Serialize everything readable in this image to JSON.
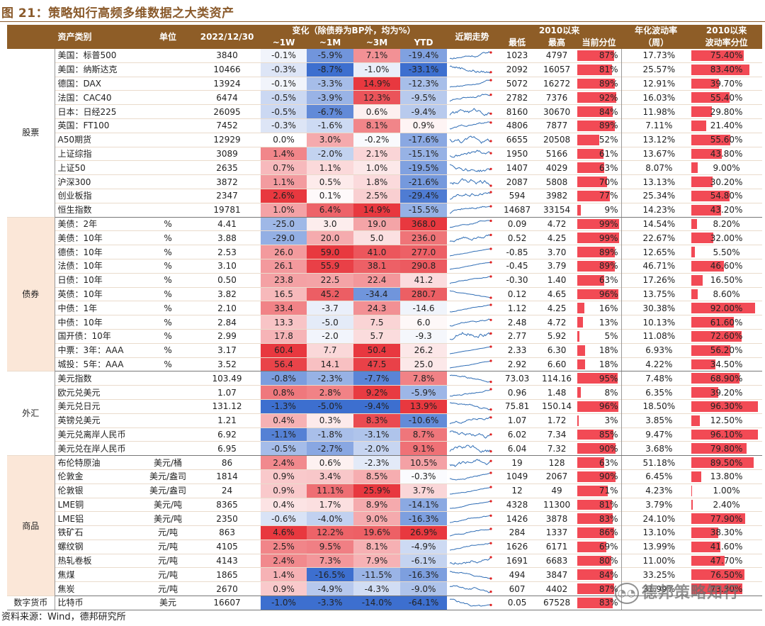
{
  "title": "图 21：策略知行高频多维数据之大类资产",
  "source": "资料来源：Wind，德邦研究所",
  "watermark": "德邦策略知行",
  "header": {
    "asset_class": "资产类别",
    "unit": "单位",
    "date": "2022/12/30",
    "change_group": "变化（除债券为BP外，均为%）",
    "w1": "~1W",
    "m1": "~1M",
    "m3": "~3M",
    "ytd": "YTD",
    "trend": "近期走势",
    "since2010": "2010以来",
    "low": "最低",
    "high": "最高",
    "pct": "当前分位",
    "vol_line1": "年化波动率",
    "vol_line2": "（周）",
    "volpct_line1": "2010以来",
    "volpct_line2": "波动率分位"
  },
  "groups": [
    {
      "name": "股票",
      "rows": [
        {
          "name": "美国：标普500",
          "unit": "",
          "value": "3840",
          "w1": "-0.1%",
          "m1": "-5.9%",
          "m3": "7.1%",
          "ytd": "-19.4%",
          "low": "1023",
          "high": "4797",
          "pct": "87%",
          "vol": "17.73%",
          "volpct": "75.40%"
        },
        {
          "name": "美国：纳斯达克",
          "unit": "",
          "value": "10466",
          "w1": "-0.3%",
          "m1": "-8.7%",
          "m3": "-1.0%",
          "ytd": "-33.1%",
          "low": "2092",
          "high": "16057",
          "pct": "81%",
          "vol": "25.57%",
          "volpct": "83.40%"
        },
        {
          "name": "德国：DAX",
          "unit": "",
          "value": "13924",
          "w1": "-0.1%",
          "m1": "-3.3%",
          "m3": "14.9%",
          "ytd": "-12.3%",
          "low": "5072",
          "high": "16272",
          "pct": "89%",
          "vol": "12.91%",
          "volpct": "39.70%"
        },
        {
          "name": "法国：CAC40",
          "unit": "",
          "value": "6474",
          "w1": "-0.5%",
          "m1": "-3.9%",
          "m3": "12.3%",
          "ytd": "-9.5%",
          "low": "2782",
          "high": "7376",
          "pct": "92%",
          "vol": "16.03%",
          "volpct": "55.40%"
        },
        {
          "name": "日本：日经225",
          "unit": "",
          "value": "26095",
          "w1": "-0.5%",
          "m1": "-6.7%",
          "m3": "0.6%",
          "ytd": "-9.4%",
          "low": "8160",
          "high": "30670",
          "pct": "84%",
          "vol": "11.98%",
          "volpct": "29.80%"
        },
        {
          "name": "英国：FT100",
          "unit": "",
          "value": "7452",
          "w1": "-0.3%",
          "m1": "-1.6%",
          "m3": "8.1%",
          "ytd": "0.9%",
          "low": "4806",
          "high": "7877",
          "pct": "89%",
          "vol": "7.11%",
          "volpct": "21.40%"
        },
        {
          "name": "A50期货",
          "unit": "",
          "value": "12929",
          "w1": "0.0%",
          "m1": "3.0%",
          "m3": "-0.2%",
          "ytd": "-17.6%",
          "low": "6655",
          "high": "20508",
          "pct": "52%",
          "vol": "13.12%",
          "volpct": "55.60%"
        },
        {
          "name": "上证综指",
          "unit": "",
          "value": "3089",
          "w1": "1.4%",
          "m1": "-2.0%",
          "m3": "2.1%",
          "ytd": "-15.1%",
          "low": "1950",
          "high": "5166",
          "pct": "61%",
          "vol": "13.67%",
          "volpct": "43.80%"
        },
        {
          "name": "上证50",
          "unit": "",
          "value": "2635",
          "w1": "0.7%",
          "m1": "1.1%",
          "m3": "1.0%",
          "ytd": "-19.5%",
          "low": "1407",
          "high": "4029",
          "pct": "63%",
          "vol": "8.07%",
          "volpct": "9.00%"
        },
        {
          "name": "沪深300",
          "unit": "",
          "value": "3872",
          "w1": "1.1%",
          "m1": "0.5%",
          "m3": "1.8%",
          "ytd": "-21.6%",
          "low": "2087",
          "high": "5808",
          "pct": "70%",
          "vol": "13.13%",
          "volpct": "30.20%"
        },
        {
          "name": "创业板指",
          "unit": "",
          "value": "2347",
          "w1": "2.6%",
          "m1": "0.1%",
          "m3": "2.5%",
          "ytd": "-29.4%",
          "low": "594",
          "high": "3982",
          "pct": "77%",
          "vol": "25.34%",
          "volpct": "54.80%"
        },
        {
          "name": "恒生指数",
          "unit": "",
          "value": "19781",
          "w1": "1.0%",
          "m1": "6.4%",
          "m3": "14.9%",
          "ytd": "-15.5%",
          "low": "14687",
          "high": "33154",
          "pct": "9%",
          "vol": "14.23%",
          "volpct": "43.20%"
        }
      ]
    },
    {
      "name": "债券",
      "rows": [
        {
          "name": "美债：2年",
          "unit": "%",
          "value": "4.41",
          "w1": "-25.0",
          "m1": "3.0",
          "m3": "19.0",
          "ytd": "368.0",
          "low": "0.09",
          "high": "4.72",
          "pct": "99%",
          "vol": "14.54%",
          "volpct": "8.20%"
        },
        {
          "name": "美债：10年",
          "unit": "%",
          "value": "3.88",
          "w1": "-29.0",
          "m1": "20.0",
          "m3": "5.0",
          "ytd": "236.0",
          "low": "0.52",
          "high": "4.25",
          "pct": "99%",
          "vol": "22.67%",
          "volpct": "32.00%"
        },
        {
          "name": "德债：10年",
          "unit": "%",
          "value": "2.53",
          "w1": "26.0",
          "m1": "59.0",
          "m3": "41.0",
          "ytd": "277.0",
          "low": "-0.85",
          "high": "3.70",
          "pct": "89%",
          "vol": "12.65%",
          "volpct": "5.50%"
        },
        {
          "name": "法债：10年",
          "unit": "%",
          "value": "3.10",
          "w1": "26.1",
          "m1": "55.9",
          "m3": "38.1",
          "ytd": "290.8",
          "low": "-0.45",
          "high": "3.79",
          "pct": "89%",
          "vol": "46.71%",
          "volpct": "46.60%"
        },
        {
          "name": "日债：10年",
          "unit": "%",
          "value": "0.50",
          "w1": "23.8",
          "m1": "22.5",
          "m3": "22.4",
          "ytd": "41.2",
          "low": "-0.30",
          "high": "1.40",
          "pct": "63%",
          "vol": "17.26%",
          "volpct": "16.50%"
        },
        {
          "name": "英债：10年",
          "unit": "%",
          "value": "3.82",
          "w1": "16.5",
          "m1": "45.2",
          "m3": "-34.4",
          "ytd": "280.7",
          "low": "0.12",
          "high": "4.65",
          "pct": "96%",
          "vol": "13.75%",
          "volpct": "8.60%"
        },
        {
          "name": "中债：1年",
          "unit": "%",
          "value": "2.10",
          "w1": "33.4",
          "m1": "-3.7",
          "m3": "24.3",
          "ytd": "-14.6",
          "low": "1.12",
          "high": "4.25",
          "pct": "16%",
          "vol": "30.38%",
          "volpct": "92.00%"
        },
        {
          "name": "中债：10年",
          "unit": "%",
          "value": "2.84",
          "w1": "13.3",
          "m1": "-5.0",
          "m3": "7.5",
          "ytd": "6.0",
          "low": "2.48",
          "high": "4.72",
          "pct": "13%",
          "vol": "10.13%",
          "volpct": "61.60%"
        },
        {
          "name": "国开债：10年",
          "unit": "%",
          "value": "2.99",
          "w1": "17.8",
          "m1": "-2.0",
          "m3": "5.7",
          "ytd": "-9.3",
          "low": "2.77",
          "high": "5.92",
          "pct": "5%",
          "vol": "11.08%",
          "volpct": "72.60%"
        },
        {
          "name": "中票：3年：AAA",
          "unit": "%",
          "value": "3.17",
          "w1": "60.4",
          "m1": "7.7",
          "m3": "50.4",
          "ytd": "26.2",
          "low": "2.33",
          "high": "6.30",
          "pct": "18%",
          "vol": "6.93%",
          "volpct": "56.20%"
        },
        {
          "name": "城投：5年：AAA",
          "unit": "%",
          "value": "3.52",
          "w1": "56.4",
          "m1": "14.1",
          "m3": "47.5",
          "ytd": "25.0",
          "low": "2.92",
          "high": "6.60",
          "pct": "18%",
          "vol": "4.22%",
          "volpct": "34.50%"
        }
      ]
    },
    {
      "name": "外汇",
      "rows": [
        {
          "name": "美元指数",
          "unit": "",
          "value": "103.49",
          "w1": "-0.8%",
          "m1": "-2.3%",
          "m3": "-7.7%",
          "ytd": "7.8%",
          "low": "73.03",
          "high": "114.16",
          "pct": "95%",
          "vol": "7.48%",
          "volpct": "68.90%"
        },
        {
          "name": "欧元兑美元",
          "unit": "",
          "value": "1.07",
          "w1": "0.8%",
          "m1": "2.8%",
          "m3": "9.2%",
          "ytd": "-5.9%",
          "low": "0.96",
          "high": "1.48",
          "pct": "8%",
          "vol": "6.35%",
          "volpct": "39.20%"
        },
        {
          "name": "美元兑日元",
          "unit": "",
          "value": "131.12",
          "w1": "-1.3%",
          "m1": "-5.0%",
          "m3": "-9.4%",
          "ytd": "13.9%",
          "low": "75.81",
          "high": "150.14",
          "pct": "96%",
          "vol": "18.50%",
          "volpct": "96.30%"
        },
        {
          "name": "英镑兑美元",
          "unit": "",
          "value": "1.21",
          "w1": "0.4%",
          "m1": "0.3%",
          "m3": "8.3%",
          "ytd": "-10.6%",
          "low": "1.07",
          "high": "1.72",
          "pct": "3%",
          "vol": "3.85%",
          "volpct": "12.50%"
        },
        {
          "name": "美元兑离岸人民币",
          "unit": "",
          "value": "6.92",
          "w1": "-1.1%",
          "m1": "-1.8%",
          "m3": "-3.1%",
          "ytd": "8.7%",
          "low": "6.02",
          "high": "7.34",
          "pct": "85%",
          "vol": "9.47%",
          "volpct": "96.10%"
        },
        {
          "name": "美元兑在岸人民币",
          "unit": "",
          "value": "6.95",
          "w1": "-0.5%",
          "m1": "-2.7%",
          "m3": "-2.0%",
          "ytd": "9.1%",
          "low": "6.04",
          "high": "7.32",
          "pct": "90%",
          "vol": "3.68%",
          "volpct": "79.80%"
        }
      ]
    },
    {
      "name": "商品",
      "rows": [
        {
          "name": "布伦特原油",
          "unit": "美元/桶",
          "value": "86",
          "w1": "2.4%",
          "m1": "0.6%",
          "m3": "-2.3%",
          "ytd": "10.5%",
          "low": "19",
          "high": "128",
          "pct": "63%",
          "vol": "51.18%",
          "volpct": "89.50%"
        },
        {
          "name": "伦敦金",
          "unit": "美元/盎司",
          "value": "1814",
          "w1": "0.9%",
          "m1": "3.4%",
          "m3": "8.5%",
          "ytd": "-0.3%",
          "low": "1049",
          "high": "2067",
          "pct": "90%",
          "vol": "6.45%",
          "volpct": "13.80%"
        },
        {
          "name": "伦敦银",
          "unit": "美元/盎司",
          "value": "24",
          "w1": "0.9%",
          "m1": "11.1%",
          "m3": "25.9%",
          "ytd": "3.7%",
          "low": "12",
          "high": "49",
          "pct": "71%",
          "vol": "4.23%",
          "volpct": "1.00%"
        },
        {
          "name": "LME铜",
          "unit": "美元/吨",
          "value": "8365",
          "w1": "0.4%",
          "m1": "1.7%",
          "m3": "8.9%",
          "ytd": "-14.1%",
          "low": "4328",
          "high": "11300",
          "pct": "81%",
          "vol": "3.79%",
          "volpct": "2.40%"
        },
        {
          "name": "LME铝",
          "unit": "美元/吨",
          "value": "2350",
          "w1": "-0.6%",
          "m1": "-4.0%",
          "m3": "9.0%",
          "ytd": "-16.3%",
          "low": "1426",
          "high": "3878",
          "pct": "83%",
          "vol": "24.10%",
          "volpct": "77.90%"
        },
        {
          "name": "铁矿石",
          "unit": "元/吨",
          "value": "863",
          "w1": "4.6%",
          "m1": "12.2%",
          "m3": "19.6%",
          "ytd": "26.9%",
          "low": "284",
          "high": "1337",
          "pct": "86%",
          "vol": "13.10%",
          "volpct": "38.30%"
        },
        {
          "name": "螺纹钢",
          "unit": "元/吨",
          "value": "4105",
          "w1": "2.5%",
          "m1": "9.5%",
          "m3": "8.1%",
          "ytd": "-4.9%",
          "low": "1626",
          "high": "6171",
          "pct": "69%",
          "vol": "13.99%",
          "volpct": "41.60%"
        },
        {
          "name": "热轧卷板",
          "unit": "元/吨",
          "value": "4143",
          "w1": "2.4%",
          "m1": "7.3%",
          "m3": "7.9%",
          "ytd": "-6.1%",
          "low": "1691",
          "high": "6683",
          "pct": "80%",
          "vol": "11.00%",
          "volpct": "47.70%"
        },
        {
          "name": "焦煤",
          "unit": "元/吨",
          "value": "1865",
          "w1": "1.4%",
          "m1": "-16.5%",
          "m3": "-11.5%",
          "ytd": "-16.3%",
          "low": "494",
          "high": "3847",
          "pct": "84%",
          "vol": "33.25%",
          "volpct": "76.50%"
        },
        {
          "name": "焦炭",
          "unit": "元/吨",
          "value": "2670",
          "w1": "0.9%",
          "m1": "-4.9%",
          "m3": "-4.3%",
          "ytd": "-9.0%",
          "low": "607",
          "high": "4402",
          "pct": "87%",
          "vol": "31.99%",
          "volpct": "73.30%"
        }
      ]
    },
    {
      "name": "数字货币",
      "rows": [
        {
          "name": "比特币",
          "unit": "美元",
          "value": "16607",
          "w1": "-1.0%",
          "m1": "-3.3%",
          "m3": "-14.0%",
          "ytd": "-64.1%",
          "low": "0.05",
          "high": "67528",
          "pct": "83%",
          "vol": "",
          "volpct": ""
        }
      ]
    }
  ],
  "colors": {
    "header": "#8e5d27",
    "bar": "#f24a55",
    "pos": "#e8383f",
    "neg": "#3d6fcf",
    "spark": "#2f6db5",
    "dot": "#e02020",
    "alt": "#fbe7d8"
  }
}
